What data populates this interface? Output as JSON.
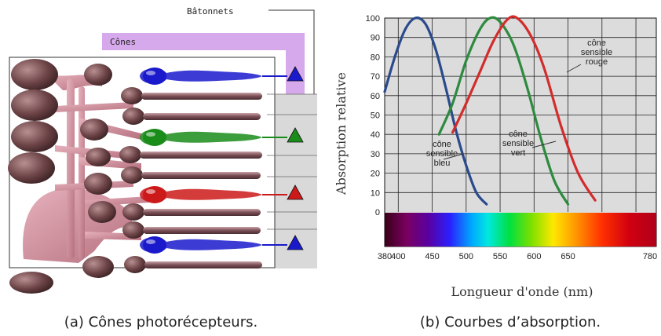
{
  "left_panel": {
    "batonnets_label": "Bâtonnets",
    "cones_label": "Cônes",
    "caption": "(a) Cônes photorécepteurs.",
    "cone_colors": [
      "#1a1acc",
      "#1a8c1a",
      "#cc1a1a",
      "#1a1acc"
    ]
  },
  "chart_data": {
    "type": "line",
    "caption": "(b) Courbes d’absorption.",
    "ylabel": "Absorption relative",
    "xlabel": "Longueur d'onde (nm)",
    "y_ticks": [
      "0",
      "10",
      "20",
      "30",
      "40",
      "50",
      "60",
      "70",
      "80",
      "90",
      "100"
    ],
    "x_ticks": [
      "380",
      "400",
      "450",
      "500",
      "550",
      "600",
      "650",
      "780"
    ],
    "ylim": [
      0,
      100
    ],
    "xlim": [
      380,
      780
    ],
    "grid": true,
    "series": [
      {
        "name": "cône sensible bleu",
        "label_lines": [
          "cône",
          "sensible",
          "bleu"
        ],
        "color": "#2b4a8c",
        "points": [
          [
            380,
            62
          ],
          [
            395,
            80
          ],
          [
            410,
            94
          ],
          [
            425,
            100
          ],
          [
            440,
            97
          ],
          [
            455,
            84
          ],
          [
            470,
            64
          ],
          [
            485,
            42
          ],
          [
            500,
            24
          ],
          [
            515,
            10
          ],
          [
            530,
            4
          ]
        ]
      },
      {
        "name": "cône sensible vert",
        "label_lines": [
          "cône",
          "sensible",
          "vert"
        ],
        "color": "#2e8a3e",
        "points": [
          [
            460,
            40
          ],
          [
            480,
            56
          ],
          [
            500,
            78
          ],
          [
            520,
            94
          ],
          [
            535,
            100
          ],
          [
            550,
            98
          ],
          [
            570,
            86
          ],
          [
            590,
            64
          ],
          [
            610,
            38
          ],
          [
            630,
            16
          ],
          [
            650,
            4
          ]
        ]
      },
      {
        "name": "cône sensible rouge",
        "label_lines": [
          "cône",
          "sensible",
          "rouge"
        ],
        "color": "#d22d2d",
        "points": [
          [
            480,
            41
          ],
          [
            500,
            56
          ],
          [
            520,
            72
          ],
          [
            540,
            88
          ],
          [
            560,
            99
          ],
          [
            575,
            100
          ],
          [
            595,
            91
          ],
          [
            615,
            74
          ],
          [
            640,
            44
          ],
          [
            665,
            20
          ],
          [
            690,
            6
          ]
        ]
      }
    ]
  }
}
